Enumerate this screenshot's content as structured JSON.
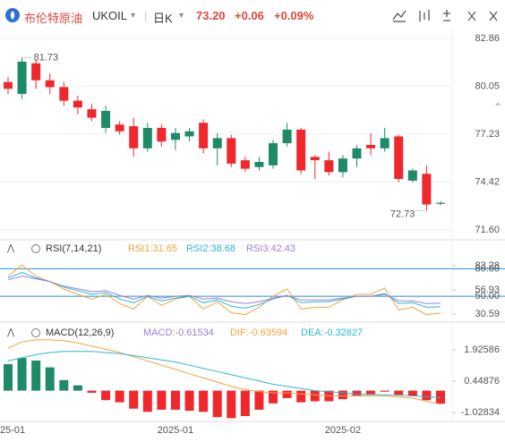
{
  "header": {
    "name": "布伦特原油",
    "symbol": "UKOIL",
    "period": "日K",
    "price": "73.20",
    "change": "+0.06",
    "change_pct": "+0.09%"
  },
  "chart_data": [
    {
      "type": "candlestick",
      "categories": [
        "25-01",
        null,
        null,
        null,
        null,
        null,
        null,
        null,
        null,
        null,
        null,
        null,
        "2025-01",
        null,
        null,
        null,
        null,
        null,
        null,
        null,
        null,
        null,
        null,
        null,
        "2025-02",
        null,
        null,
        null,
        null,
        null,
        null,
        null
      ],
      "open": [
        80.3,
        79.6,
        81.4,
        80.4,
        80.0,
        79.2,
        78.7,
        77.6,
        77.8,
        77.7,
        76.4,
        77.6,
        76.9,
        77.1,
        77.9,
        76.4,
        77.0,
        75.7,
        75.3,
        75.4,
        76.7,
        77.5,
        75.9,
        75.7,
        75.0,
        75.8,
        76.6,
        76.4,
        77.1,
        74.5,
        74.9,
        73.14
      ],
      "high": [
        80.6,
        81.73,
        81.6,
        80.8,
        80.3,
        79.5,
        79.0,
        78.9,
        78.0,
        78.2,
        77.9,
        77.8,
        77.6,
        77.6,
        78.1,
        77.3,
        77.2,
        75.9,
        75.9,
        76.9,
        77.9,
        77.6,
        76.0,
        76.2,
        76.0,
        76.6,
        77.3,
        77.6,
        77.2,
        75.2,
        75.4,
        73.3
      ],
      "low": [
        79.6,
        79.3,
        79.9,
        79.6,
        78.9,
        78.4,
        78.0,
        77.3,
        77.2,
        75.9,
        76.2,
        76.5,
        76.3,
        76.8,
        76.1,
        75.4,
        75.3,
        75.0,
        75.1,
        75.2,
        76.5,
        74.9,
        74.6,
        74.8,
        74.7,
        75.3,
        76.0,
        76.2,
        74.4,
        74.4,
        72.73,
        73.05
      ],
      "close": [
        79.9,
        81.5,
        80.4,
        80.0,
        79.2,
        78.8,
        78.2,
        78.6,
        77.4,
        76.4,
        77.6,
        76.8,
        77.3,
        77.4,
        76.4,
        77.0,
        75.5,
        75.2,
        75.6,
        76.7,
        77.5,
        75.1,
        75.7,
        75.0,
        75.8,
        76.4,
        76.4,
        77.0,
        74.6,
        75.1,
        73.1,
        73.2
      ],
      "up_color": "#1f8a68",
      "down_color": "#f0282d",
      "ylim": [
        71.18,
        83.28
      ],
      "yticks": [
        82.86,
        80.05,
        77.23,
        74.42,
        {
          "value": 71.6,
          "label": "71.60"
        }
      ],
      "grid": true
    },
    {
      "type": "line",
      "title": "RSI(7,14,21)",
      "series": [
        {
          "name": "RSI1:31.65",
          "color": "#f5a33a",
          "values": [
            72,
            84,
            72,
            66,
            58,
            52,
            47,
            52,
            42,
            36,
            50,
            40,
            47,
            50,
            36,
            44,
            32,
            30,
            38,
            50,
            58,
            36,
            38,
            38,
            46,
            52,
            52,
            59,
            35,
            38,
            30,
            31.65
          ]
        },
        {
          "name": "RSI2:38.68",
          "color": "#29b8d6",
          "values": [
            70,
            76,
            70,
            66,
            60,
            56,
            52,
            54,
            47,
            43,
            50,
            45,
            48,
            50,
            43,
            46,
            39,
            37,
            41,
            47,
            51,
            43,
            44,
            44,
            47,
            50,
            50,
            53,
            42,
            43,
            38,
            38.68
          ]
        },
        {
          "name": "RSI3:42.43",
          "color": "#9b7fd8",
          "values": [
            68,
            72,
            69,
            66,
            61,
            58,
            55,
            56,
            51,
            47,
            51,
            48,
            50,
            51,
            47,
            48,
            44,
            42,
            44,
            48,
            51,
            46,
            46,
            46,
            48,
            50,
            50,
            52,
            45,
            45,
            42,
            42.43
          ]
        }
      ],
      "reference_lines": [
        {
          "value": 80,
          "label": "80.00"
        },
        {
          "value": 50,
          "label": "50.00"
        }
      ],
      "reference_color": "#2f8fd8",
      "ylim": [
        24.7,
        95.0
      ],
      "yticks": [
        83.28,
        56.93,
        30.59
      ]
    },
    {
      "type": "macd",
      "title": "MACD(12,26,9)",
      "series": [
        {
          "name": "MACD:-0.61534",
          "color": "#9b7fd8",
          "up_color": "#1f8a68",
          "down_color": "#f0282d",
          "values": [
            1.25,
            1.54,
            1.42,
            1.1,
            0.5,
            0.25,
            -0.1,
            -0.45,
            -0.55,
            -0.85,
            -1.0,
            -0.9,
            -0.9,
            -0.95,
            -1.0,
            -1.25,
            -1.3,
            -1.2,
            -0.9,
            -0.6,
            -0.35,
            -0.55,
            -0.5,
            -0.5,
            -0.4,
            -0.25,
            -0.2,
            -0.05,
            -0.2,
            -0.25,
            -0.45,
            -0.61534
          ]
        },
        {
          "name": "DIF:-0.63594",
          "color": "#f5a33a",
          "values": [
            2.0,
            2.3,
            2.4,
            2.4,
            2.35,
            2.25,
            2.1,
            1.95,
            1.8,
            1.6,
            1.4,
            1.2,
            1.0,
            0.8,
            0.6,
            0.4,
            0.2,
            0.05,
            -0.05,
            -0.1,
            -0.1,
            -0.15,
            -0.2,
            -0.25,
            -0.25,
            -0.25,
            -0.25,
            -0.25,
            -0.3,
            -0.35,
            -0.5,
            -0.63594
          ]
        },
        {
          "name": "DEA:-0.32827",
          "color": "#29b8d6",
          "values": [
            1.4,
            1.55,
            1.7,
            1.8,
            1.85,
            1.85,
            1.85,
            1.8,
            1.75,
            1.65,
            1.55,
            1.45,
            1.35,
            1.2,
            1.05,
            0.9,
            0.75,
            0.6,
            0.45,
            0.3,
            0.2,
            0.1,
            0.0,
            -0.05,
            -0.1,
            -0.15,
            -0.18,
            -0.2,
            -0.22,
            -0.25,
            -0.28,
            -0.32827
          ]
        }
      ],
      "ylim": [
        -1.41,
        3.15
      ],
      "yticks": [
        1.92586,
        0.44876,
        -1.02834
      ]
    }
  ]
}
